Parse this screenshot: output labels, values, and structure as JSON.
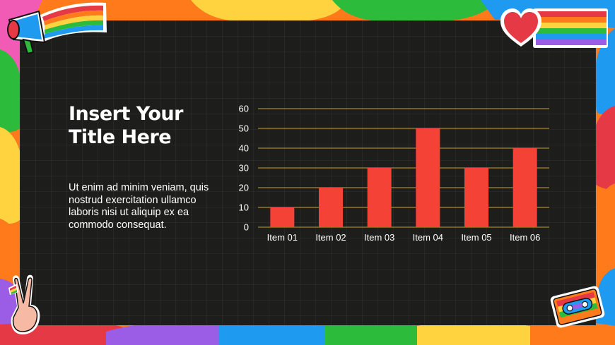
{
  "slide": {
    "title": "Insert Your Title Here",
    "body": "Ut enim ad minim veniam, quis nostrud exercitation ullamco laboris nisi ut aliquip ex ea commodo consequat."
  },
  "colors": {
    "background_panel": "#1d1d1b",
    "bar": "#f44336",
    "gridline": "#c9a227",
    "frame_rainbow": [
      "#e63946",
      "#ff7a1a",
      "#ffd23f",
      "#2dbb3c",
      "#1e9bf0",
      "#9b5de5",
      "#f15bb5"
    ]
  },
  "stickers": {
    "top_left": "megaphone-rainbow-icon",
    "top_right": "heart-rainbow-flag-icon",
    "bottom_left": "peace-hand-icon",
    "bottom_right": "cassette-tape-icon"
  },
  "chart_data": {
    "type": "bar",
    "categories": [
      "Item 01",
      "Item 02",
      "Item 03",
      "Item 04",
      "Item 05",
      "Item 06"
    ],
    "values": [
      10,
      20,
      30,
      50,
      30,
      40
    ],
    "ylim": [
      0,
      60
    ],
    "yticks": [
      0,
      10,
      20,
      30,
      40,
      50,
      60
    ],
    "grid": true,
    "legend": false
  }
}
